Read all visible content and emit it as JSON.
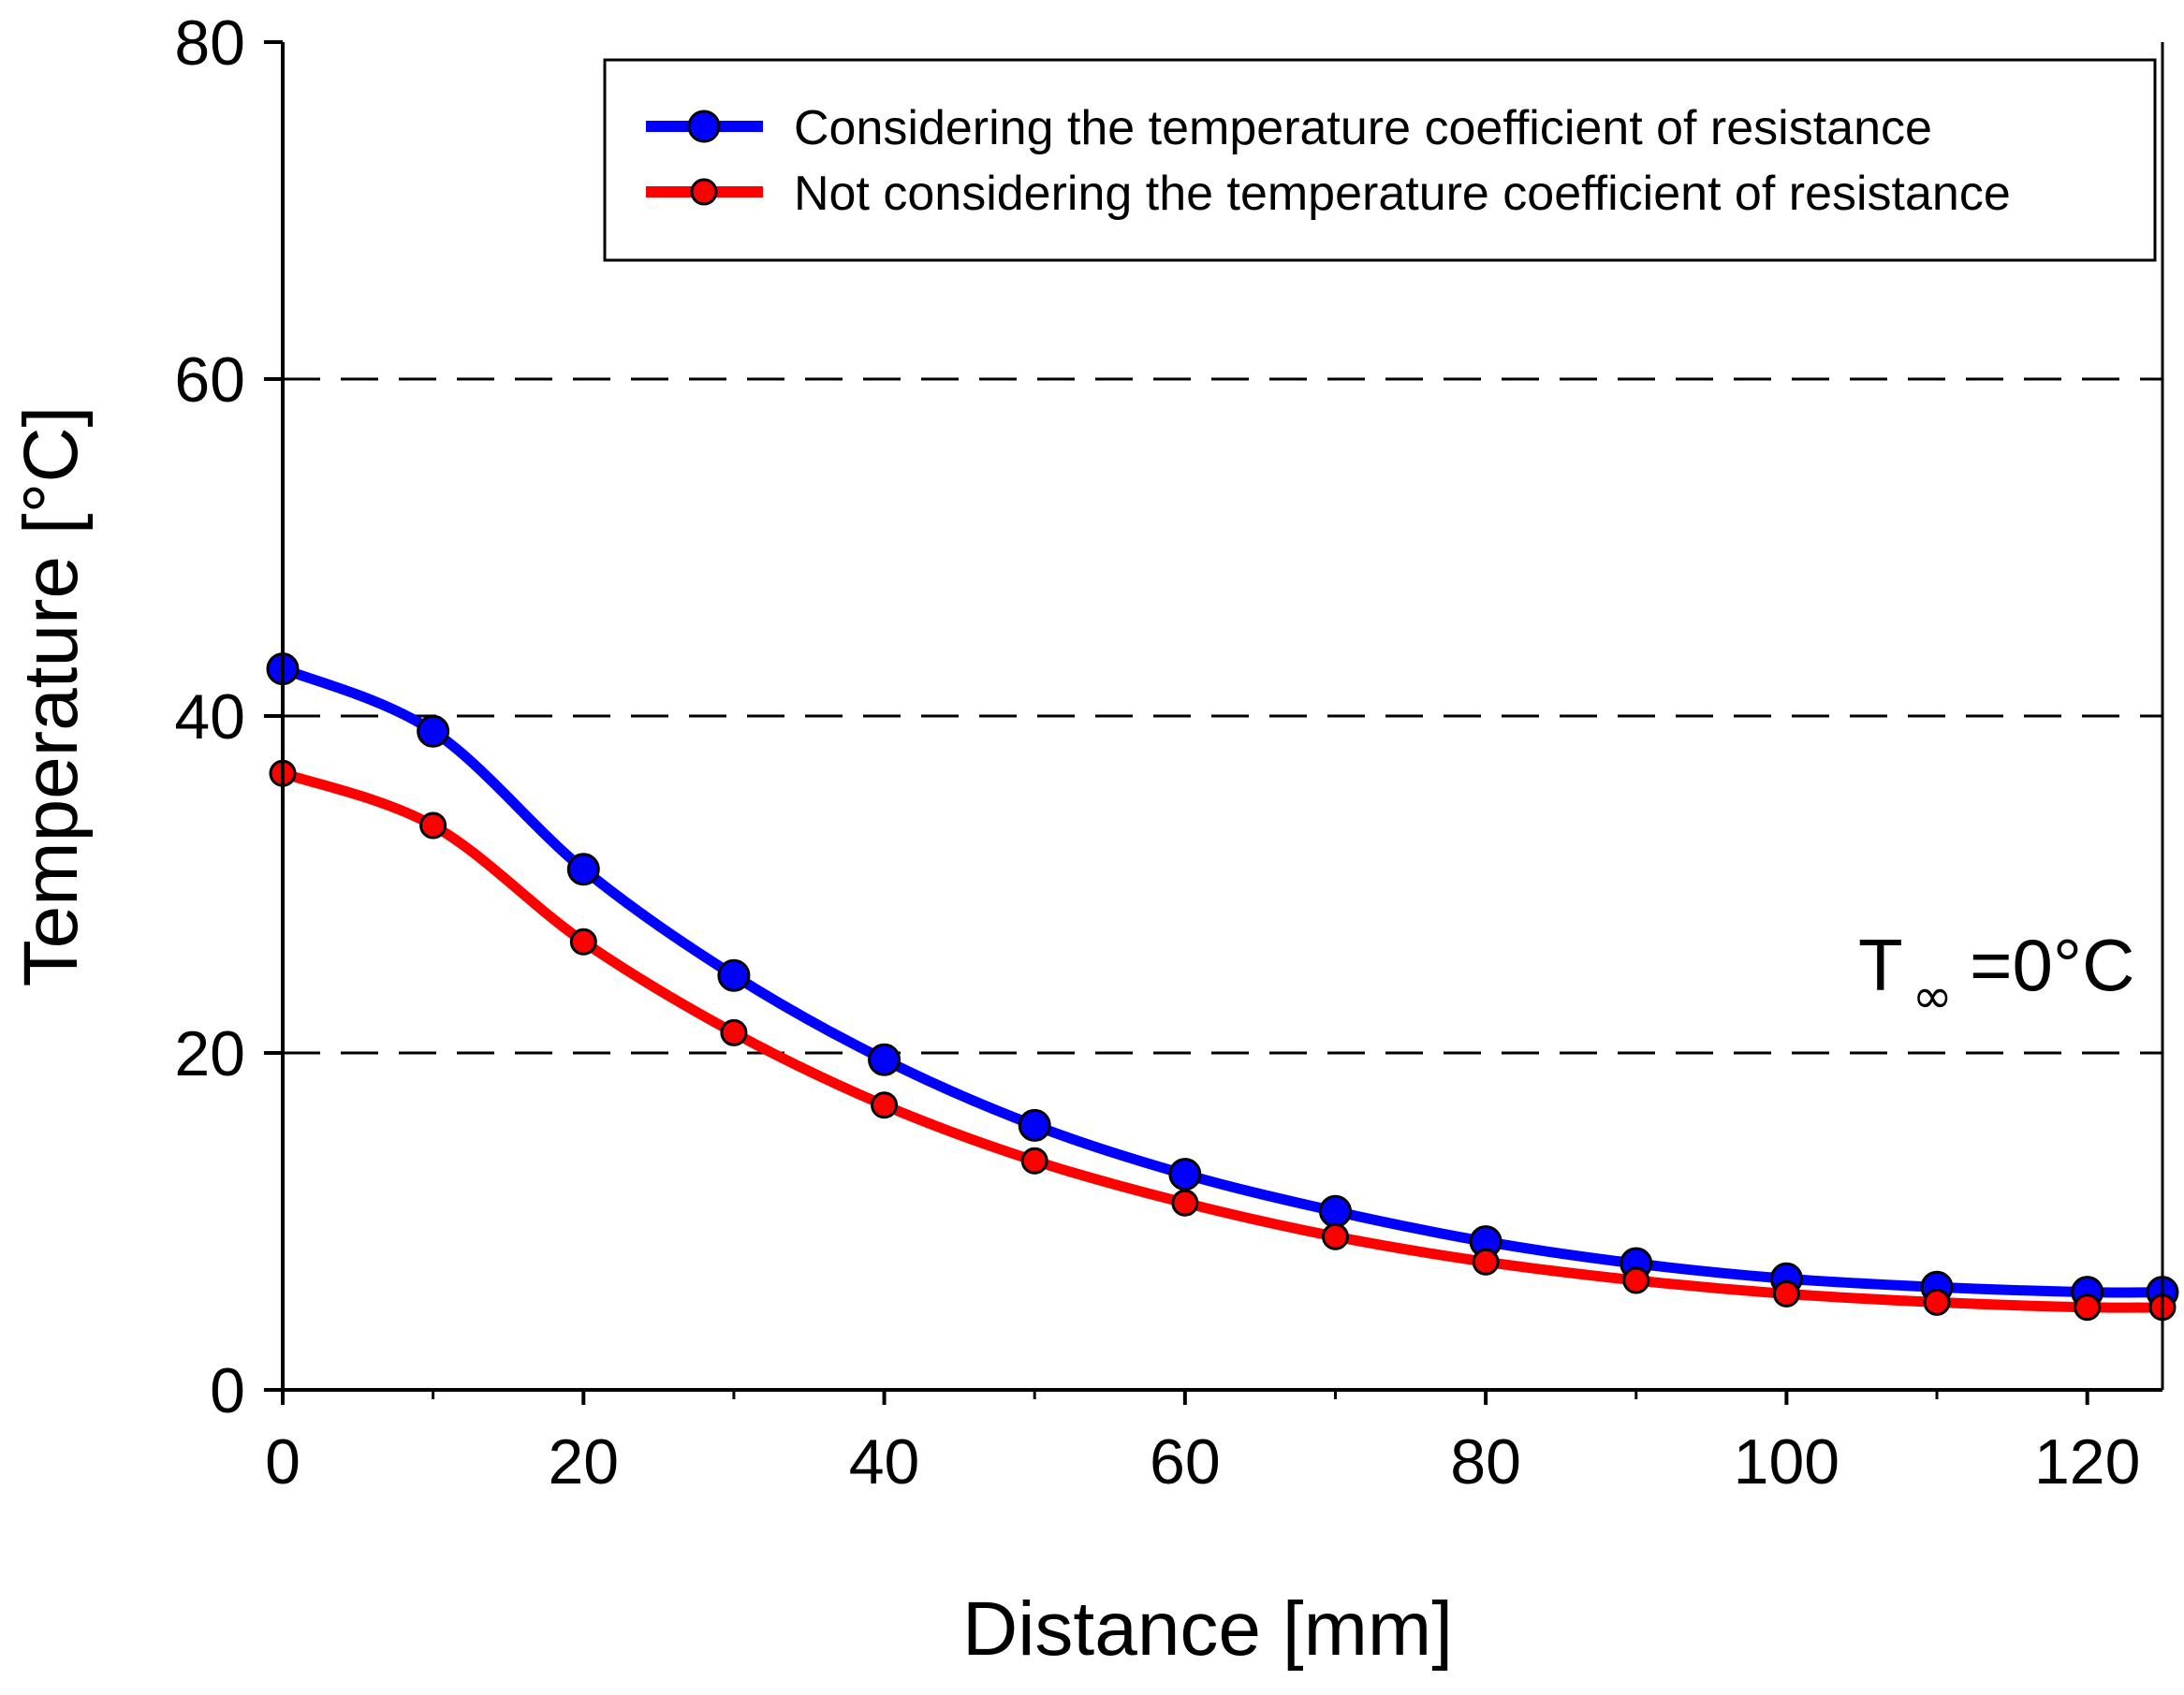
{
  "chart_data": {
    "type": "line",
    "xlabel": "Distance [mm]",
    "ylabel": "Temperature [°C]",
    "xlim": [
      0,
      125
    ],
    "ylim": [
      0,
      80
    ],
    "xticks": [
      "0",
      "20",
      "40",
      "60",
      "80",
      "100",
      "120"
    ],
    "yticks": [
      "0",
      "20",
      "40",
      "60",
      "80"
    ],
    "grid": "horizontal dashed at 20, 40, 60",
    "legend_position": "top-right",
    "annotation": {
      "main": "T",
      "subscript": "∞",
      "rest": "=0°C"
    },
    "x": [
      0,
      10,
      20,
      30,
      40,
      50,
      60,
      70,
      80,
      90,
      100,
      110,
      120,
      125
    ],
    "series": [
      {
        "name": "Considering the temperature coefficient of resistance",
        "color": "#0000ff",
        "values": [
          42.8,
          39.1,
          30.9,
          24.6,
          19.6,
          15.7,
          12.8,
          10.6,
          8.8,
          7.5,
          6.6,
          6.1,
          5.8,
          5.8
        ]
      },
      {
        "name": "Not considering the temperature coefficient of resistance",
        "color": "#ff0000",
        "values": [
          36.6,
          33.5,
          26.6,
          21.2,
          16.9,
          13.6,
          11.1,
          9.1,
          7.6,
          6.5,
          5.7,
          5.2,
          4.9,
          4.9
        ]
      }
    ]
  }
}
